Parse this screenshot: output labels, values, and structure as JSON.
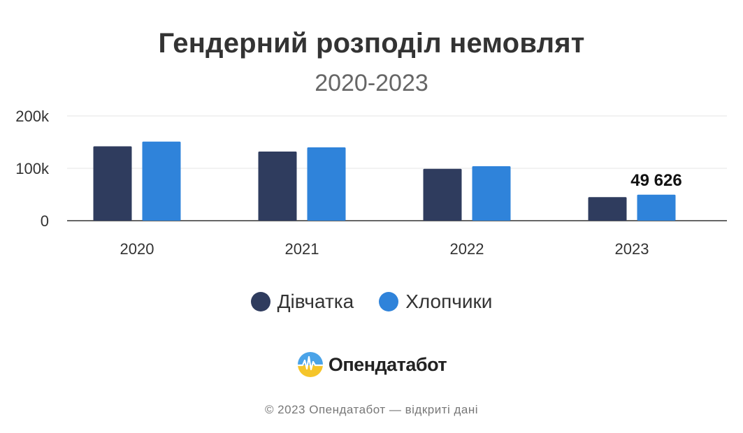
{
  "colors": {
    "girls": "#2f3c5e",
    "boys": "#2f83da",
    "axis": "#333333",
    "grid": "#e6e6e6"
  },
  "brand": {
    "name": "Опендатабот",
    "icon": "opendatabot-logo-icon"
  },
  "footer": "© 2023 Опендатабот — відкриті дані",
  "chart_data": {
    "type": "bar",
    "title": "Гендерний розподіл немовлят",
    "subtitle": "2020-2023",
    "xlabel": "",
    "ylabel": "",
    "categories": [
      "2020",
      "2021",
      "2022",
      "2023"
    ],
    "series": [
      {
        "name": "Дівчатка",
        "values": [
          142000,
          132000,
          99000,
          45000
        ]
      },
      {
        "name": "Хлопчики",
        "values": [
          151000,
          140000,
          104000,
          49626
        ]
      }
    ],
    "ylim": [
      0,
      200000
    ],
    "yticks": [
      0,
      100000,
      200000
    ],
    "ytick_labels": [
      "0",
      "100k",
      "200k"
    ],
    "grid": true,
    "legend": "bottom-center",
    "annotations": [
      {
        "series": 1,
        "category": "2023",
        "text": "49 626"
      }
    ]
  }
}
